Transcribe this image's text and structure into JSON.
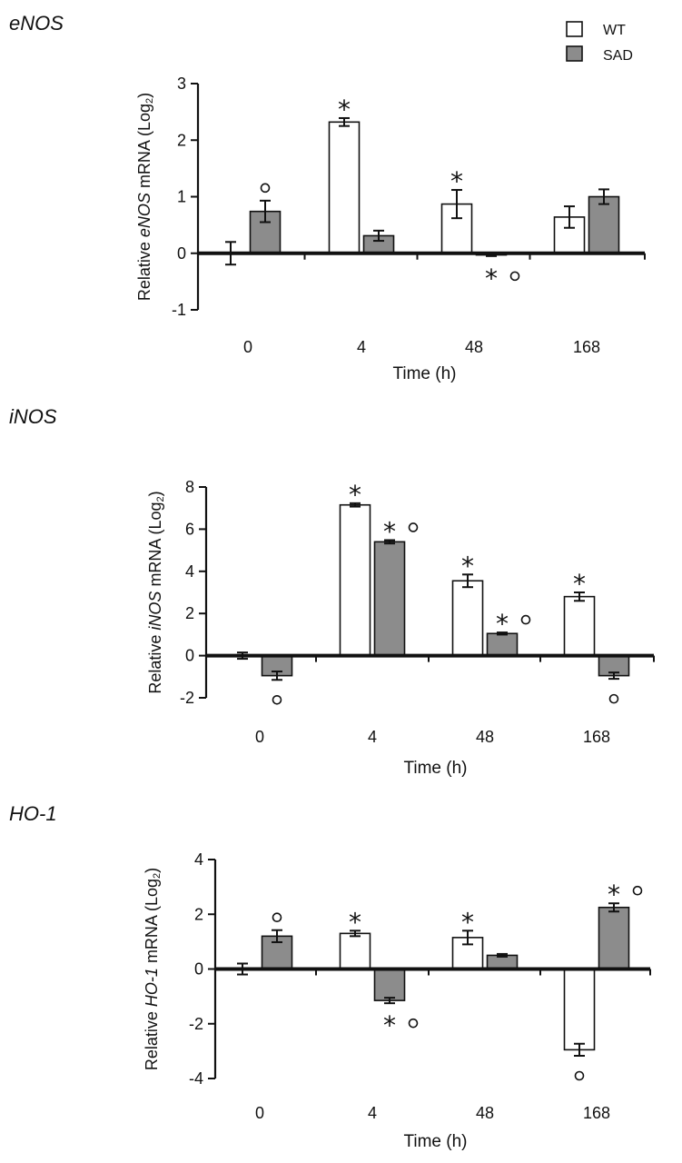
{
  "legend": [
    {
      "label": "WT",
      "color": "#ffffff"
    },
    {
      "label": "SAD",
      "color": "#8c8c8c"
    }
  ],
  "chart_data": [
    {
      "type": "bar",
      "title": "eNOS",
      "ylabel": {
        "pre": "Relative ",
        "gene": "eNOS",
        "post": " mRNA (Log",
        "sub": "2",
        "end": ")"
      },
      "xlabel": "Time (h)",
      "categories": [
        "0",
        "4",
        "48",
        "168"
      ],
      "ylim": [
        -1,
        3
      ],
      "yticks": [
        -1,
        0,
        1,
        2,
        3
      ],
      "yticklabels": [
        "-1",
        "0",
        "1",
        "2",
        "3"
      ],
      "series": [
        {
          "name": "WT",
          "values": [
            0.0,
            2.32,
            0.87,
            0.64
          ],
          "errors": [
            0.2,
            0.07,
            0.25,
            0.19
          ],
          "marks": [
            [],
            [
              "*"
            ],
            [
              "*"
            ],
            []
          ]
        },
        {
          "name": "SAD",
          "values": [
            0.74,
            0.31,
            -0.03,
            1.0
          ],
          "errors": [
            0.19,
            0.09,
            0.02,
            0.13
          ],
          "marks": [
            [
              "o"
            ],
            [],
            [
              "*",
              "o"
            ],
            []
          ]
        }
      ]
    },
    {
      "type": "bar",
      "title": "iNOS",
      "ylabel": {
        "pre": "Relative ",
        "gene": "iNOS",
        "post": " mRNA (Log",
        "sub": "2",
        "end": ")"
      },
      "xlabel": "Time (h)",
      "categories": [
        "0",
        "4",
        "48",
        "168"
      ],
      "ylim": [
        -2,
        8
      ],
      "yticks": [
        -2,
        0,
        2,
        4,
        6,
        8
      ],
      "yticklabels": [
        "-2",
        "0",
        "2",
        "4",
        "6",
        "8"
      ],
      "series": [
        {
          "name": "WT",
          "values": [
            0.0,
            7.15,
            3.55,
            2.8
          ],
          "errors": [
            0.15,
            0.08,
            0.3,
            0.2
          ],
          "marks": [
            [],
            [
              "*"
            ],
            [
              "*"
            ],
            [
              "*"
            ]
          ]
        },
        {
          "name": "SAD",
          "values": [
            -0.95,
            5.4,
            1.05,
            -0.95
          ],
          "errors": [
            0.2,
            0.08,
            0.05,
            0.15
          ],
          "marks": [
            [
              "o"
            ],
            [
              "*",
              "o"
            ],
            [
              "*",
              "o"
            ],
            [
              "o"
            ]
          ]
        }
      ]
    },
    {
      "type": "bar",
      "title": "HO-1",
      "ylabel": {
        "pre": "Relative ",
        "gene": "HO-1",
        "post": " mRNA (Log",
        "sub": "2",
        "end": ")"
      },
      "xlabel": "Time (h)",
      "categories": [
        "0",
        "4",
        "48",
        "168"
      ],
      "ylim": [
        -4,
        4
      ],
      "yticks": [
        -4,
        -2,
        0,
        2,
        4
      ],
      "yticklabels": [
        "-4",
        "-2",
        "0",
        "2",
        "4"
      ],
      "series": [
        {
          "name": "WT",
          "values": [
            0.0,
            1.3,
            1.15,
            -2.95
          ],
          "errors": [
            0.2,
            0.1,
            0.25,
            0.22
          ],
          "marks": [
            [],
            [
              "*"
            ],
            [
              "*"
            ],
            [
              "o"
            ]
          ]
        },
        {
          "name": "SAD",
          "values": [
            1.2,
            -1.15,
            0.5,
            2.25
          ],
          "errors": [
            0.22,
            0.1,
            0.05,
            0.15
          ],
          "marks": [
            [
              "o"
            ],
            [
              "*",
              "o"
            ],
            [],
            [
              "*",
              "o"
            ]
          ]
        }
      ]
    }
  ]
}
